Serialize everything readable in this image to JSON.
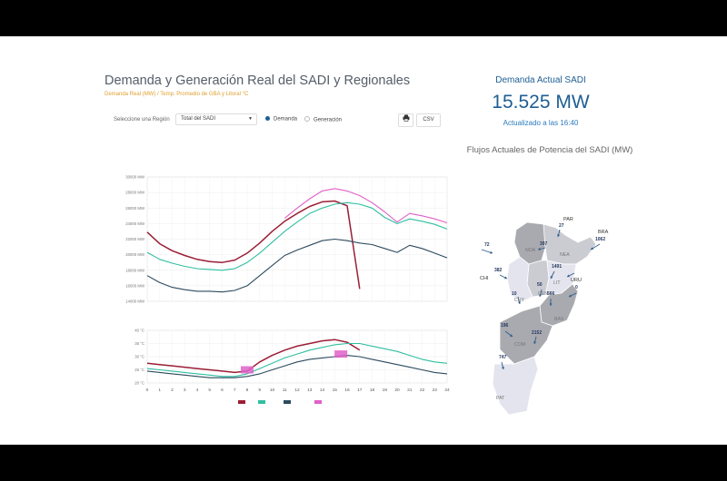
{
  "header": {
    "title": "Demanda y Generación Real del SADI y Regionales",
    "subtitle": "Demanda Real (MW) / Temp. Promedio de GBA y Litoral °C"
  },
  "controls": {
    "region_label": "Seleccione una Región",
    "region_value": "Total del SADI",
    "option_demanda": "Demanda",
    "option_generacion": "Generación",
    "csv_label": "CSV"
  },
  "summary": {
    "title": "Demanda Actual SADI",
    "value": "15.525 MW",
    "updated": "Actualizado a las 16:40"
  },
  "flows": {
    "title": "Flujos Actuales de Potencia del SADI (MW)",
    "regions": [
      "NOA",
      "NEA",
      "CEN",
      "CUY",
      "LIT",
      "BAS",
      "COM",
      "PAT"
    ],
    "countries": [
      "PAR",
      "BRA",
      "CHI",
      "URU"
    ],
    "values": [
      "27",
      "1062",
      "72",
      "397",
      "1491",
      "382",
      "50",
      "0",
      "10",
      "566",
      "196",
      "2152",
      "747"
    ]
  },
  "colors": {
    "hoy": "#9b1d35",
    "ayer": "#2fbfa0",
    "semana": "#2c4a5e",
    "prevista": "#e060c8",
    "map_dark": "#a9a9b0",
    "map_mid": "#cbcbd2",
    "map_light": "#e4e4ee",
    "accent": "#1e5e94"
  },
  "chart_data": [
    {
      "type": "line",
      "title": "",
      "xlabel": "",
      "ylabel": "",
      "ylim": [
        14000,
        30000
      ],
      "y_ticks": [
        "14000 MW",
        "16000 MW",
        "18000 MW",
        "20000 MW",
        "22000 MW",
        "24000 MW",
        "26000 MW",
        "28000 MW",
        "30000 MW"
      ],
      "x": [
        0,
        1,
        2,
        3,
        4,
        5,
        6,
        7,
        8,
        9,
        10,
        11,
        12,
        13,
        14,
        15,
        16,
        17,
        18,
        19,
        20,
        21,
        22,
        23,
        24
      ],
      "series": [
        {
          "name": "Hoy",
          "values": [
            22900,
            21400,
            20500,
            19900,
            19400,
            19100,
            19000,
            19300,
            20200,
            21500,
            23000,
            24300,
            25300,
            26200,
            26800,
            26900,
            26300,
            15600,
            null,
            null,
            null,
            null,
            null,
            null,
            null
          ]
        },
        {
          "name": "Ayer",
          "values": [
            20300,
            19400,
            18900,
            18500,
            18200,
            18100,
            18000,
            18200,
            19000,
            20200,
            21600,
            23000,
            24200,
            25300,
            26000,
            26500,
            26700,
            26500,
            26000,
            24800,
            24000,
            24600,
            24300,
            23900,
            23300
          ]
        },
        {
          "name": "Semana Ant.",
          "values": [
            17300,
            16400,
            15800,
            15500,
            15300,
            15300,
            15200,
            15400,
            16000,
            17300,
            18600,
            19900,
            20600,
            21200,
            21800,
            22000,
            21800,
            21500,
            21300,
            20800,
            20300,
            21200,
            20800,
            20200,
            19600
          ]
        },
        {
          "name": "Prevista",
          "values": [
            null,
            null,
            null,
            null,
            null,
            null,
            null,
            null,
            null,
            null,
            null,
            24700,
            26000,
            27200,
            28200,
            28500,
            28200,
            27600,
            26700,
            25500,
            24200,
            25300,
            25000,
            24600,
            24100
          ]
        }
      ]
    },
    {
      "type": "line",
      "title": "",
      "xlabel": "",
      "ylabel": "",
      "ylim": [
        20,
        40
      ],
      "y_ticks": [
        "20 °C",
        "25 °C",
        "30 °C",
        "35 °C",
        "40 °C"
      ],
      "x_ticks": [
        "0",
        "1",
        "2",
        "3",
        "4",
        "5",
        "6",
        "7",
        "8",
        "9",
        "10",
        "11",
        "12",
        "13",
        "14",
        "15",
        "16",
        "17",
        "18",
        "19",
        "20",
        "21",
        "22",
        "23",
        "24"
      ],
      "x": [
        0,
        1,
        2,
        3,
        4,
        5,
        6,
        7,
        8,
        9,
        10,
        11,
        12,
        13,
        14,
        15,
        16,
        17,
        18,
        19,
        20,
        21,
        22,
        23,
        24
      ],
      "series": [
        {
          "name": "Hoy",
          "values": [
            27.5,
            27,
            26.5,
            26,
            25.5,
            25,
            24.5,
            24,
            24.5,
            28,
            30.5,
            32.5,
            34,
            35,
            36,
            36.5,
            35.5,
            32.5,
            null,
            null,
            null,
            null,
            null,
            null,
            null
          ]
        },
        {
          "name": "Ayer",
          "values": [
            25.5,
            25,
            24.5,
            24,
            23.5,
            23,
            22.5,
            22.5,
            23.5,
            25.5,
            27.5,
            29.5,
            31,
            32.5,
            33.5,
            34.5,
            35,
            35,
            34,
            33,
            32,
            30.5,
            29,
            28,
            27.5
          ]
        },
        {
          "name": "Semana Ant.",
          "values": [
            24.5,
            24,
            23.5,
            23,
            22.5,
            22,
            22,
            22,
            22.5,
            23.5,
            25,
            26.5,
            28,
            29,
            29.5,
            30,
            30.5,
            30,
            29,
            28,
            27,
            26,
            25,
            24,
            23.5
          ]
        }
      ],
      "markers": [
        {
          "name": "Prevista",
          "x": 8,
          "y": 25
        },
        {
          "name": "Prevista",
          "x": 15.5,
          "y": 31
        }
      ],
      "legend": [
        "Hoy",
        "Ayer",
        "Semana Ant.",
        "Prevista"
      ]
    }
  ]
}
